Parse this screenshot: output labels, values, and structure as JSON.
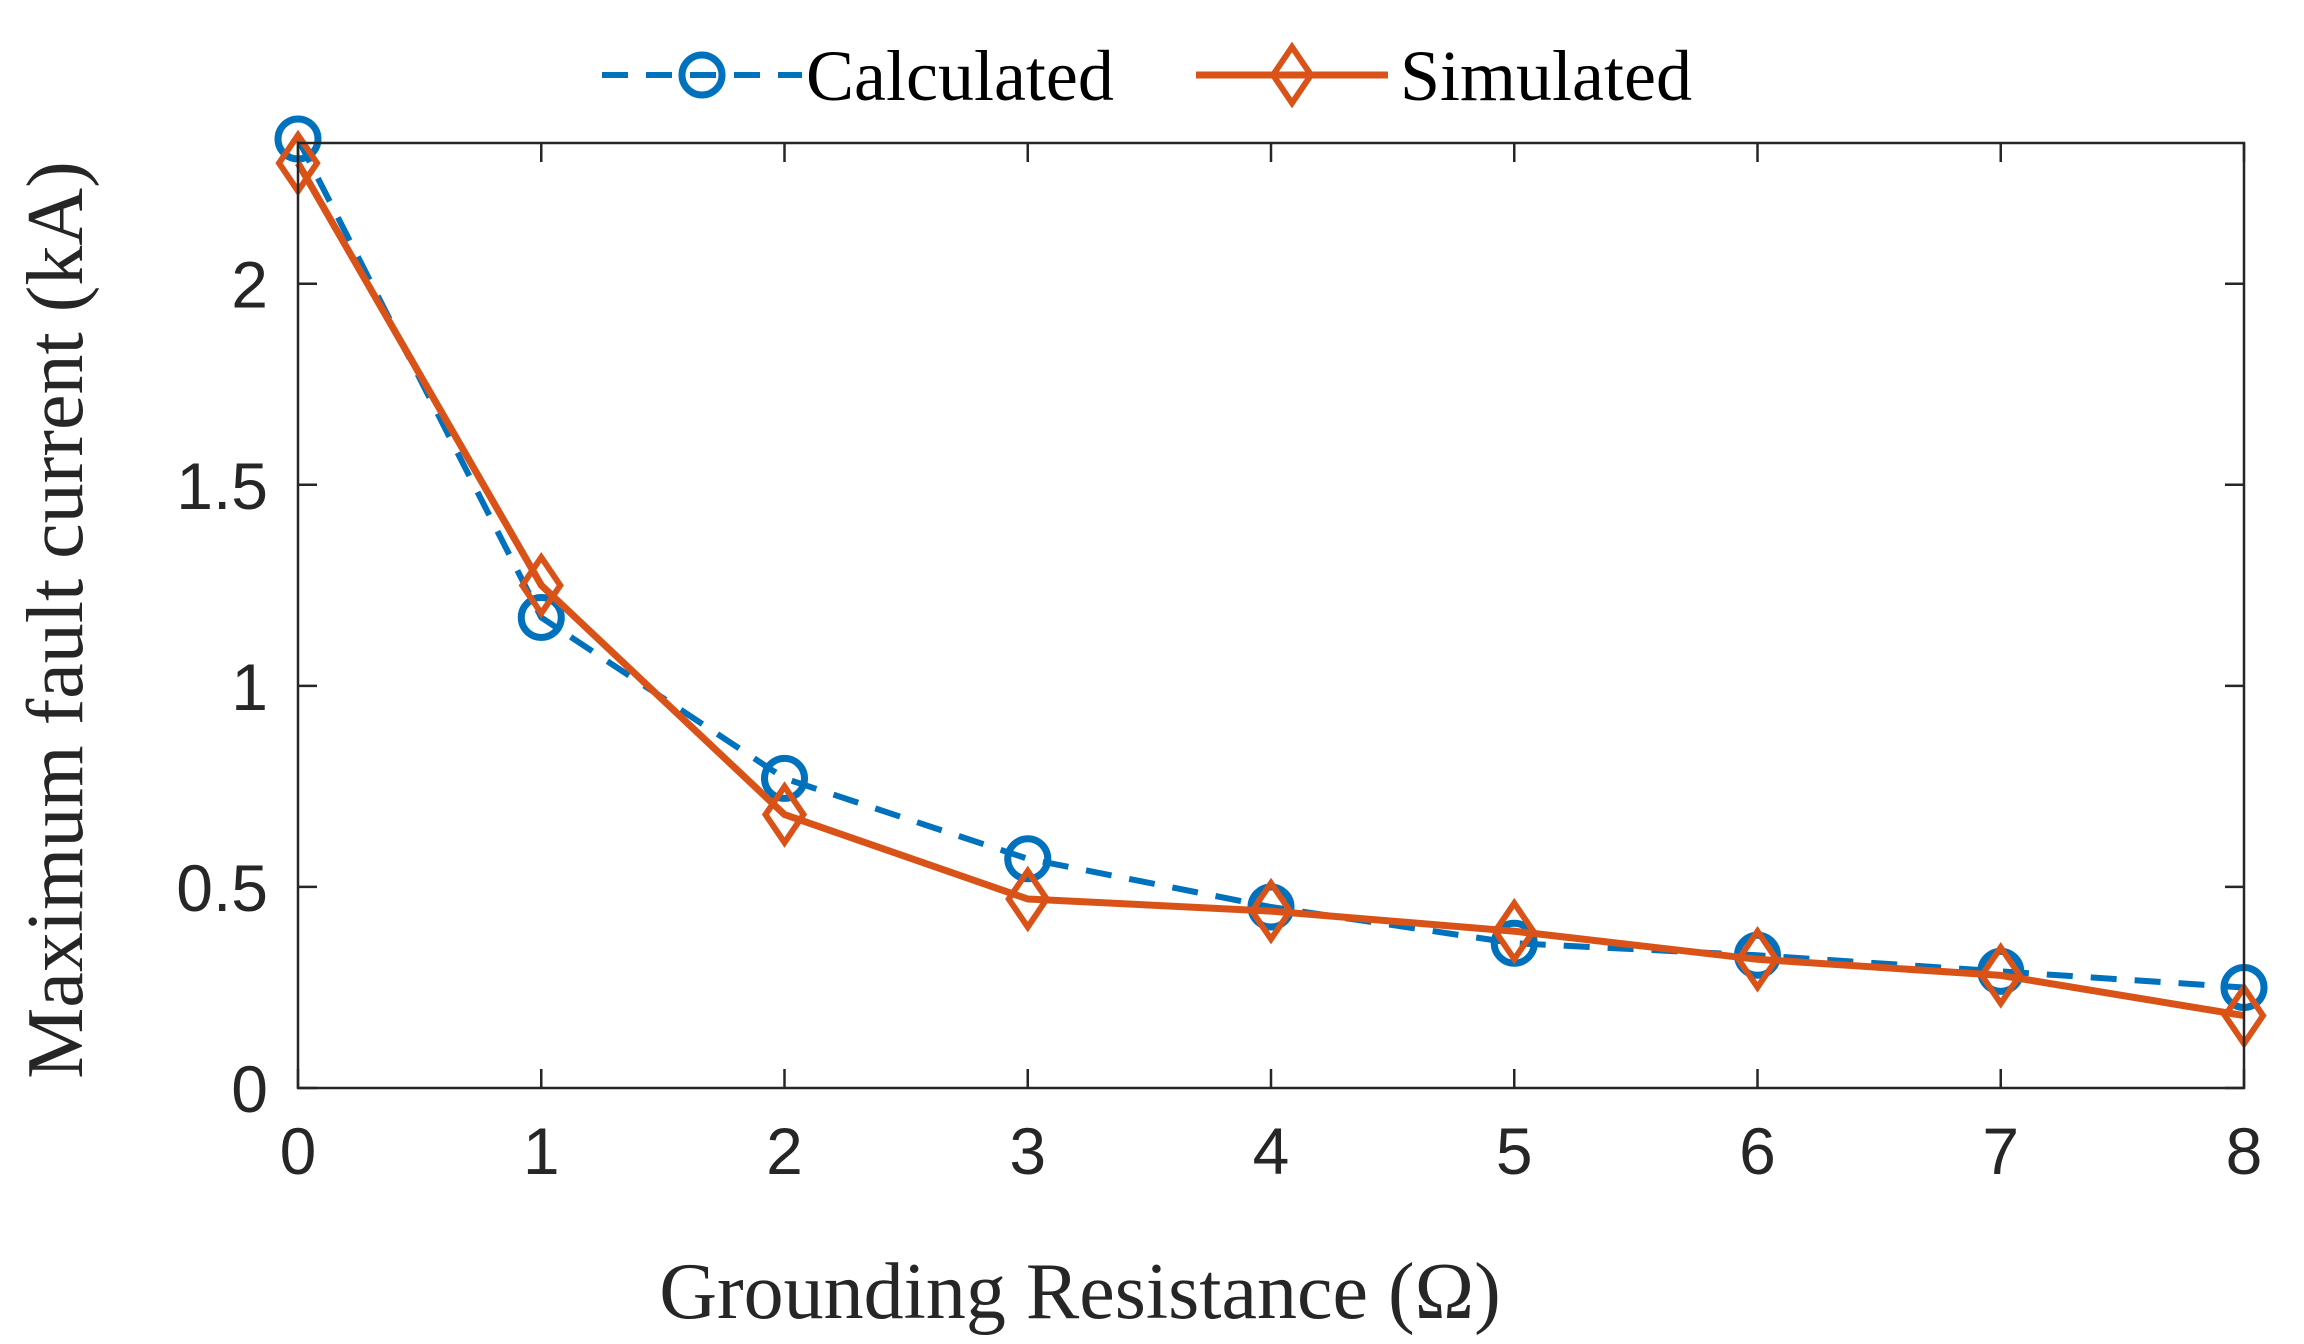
{
  "chart_data": {
    "type": "line",
    "title": "",
    "xlabel": "Grounding Resistance (Ω)",
    "ylabel": "Maximum fault current (kA)",
    "xlim": [
      0,
      8
    ],
    "ylim": [
      0,
      2.35
    ],
    "x_ticks": [
      0,
      1,
      2,
      3,
      4,
      5,
      6,
      7,
      8
    ],
    "y_ticks": [
      0,
      0.5,
      1,
      1.5,
      2
    ],
    "x_tick_labels": [
      "0",
      "1",
      "2",
      "3",
      "4",
      "5",
      "6",
      "7",
      "8"
    ],
    "y_tick_labels": [
      "0",
      "0.5",
      "1",
      "1.5",
      "2"
    ],
    "grid": false,
    "legend_position": "top",
    "x": [
      0,
      1,
      2,
      3,
      4,
      5,
      6,
      7,
      8
    ],
    "series": [
      {
        "name": "Calculated",
        "values": [
          2.36,
          1.17,
          0.77,
          0.57,
          0.45,
          0.36,
          0.33,
          0.29,
          0.25
        ],
        "color": "#0072BD",
        "line_style": "dashed",
        "marker": "circle"
      },
      {
        "name": "Simulated",
        "values": [
          2.3,
          1.25,
          0.68,
          0.47,
          0.44,
          0.39,
          0.32,
          0.28,
          0.18
        ],
        "color": "#D95319",
        "line_style": "solid",
        "marker": "diamond"
      }
    ]
  }
}
